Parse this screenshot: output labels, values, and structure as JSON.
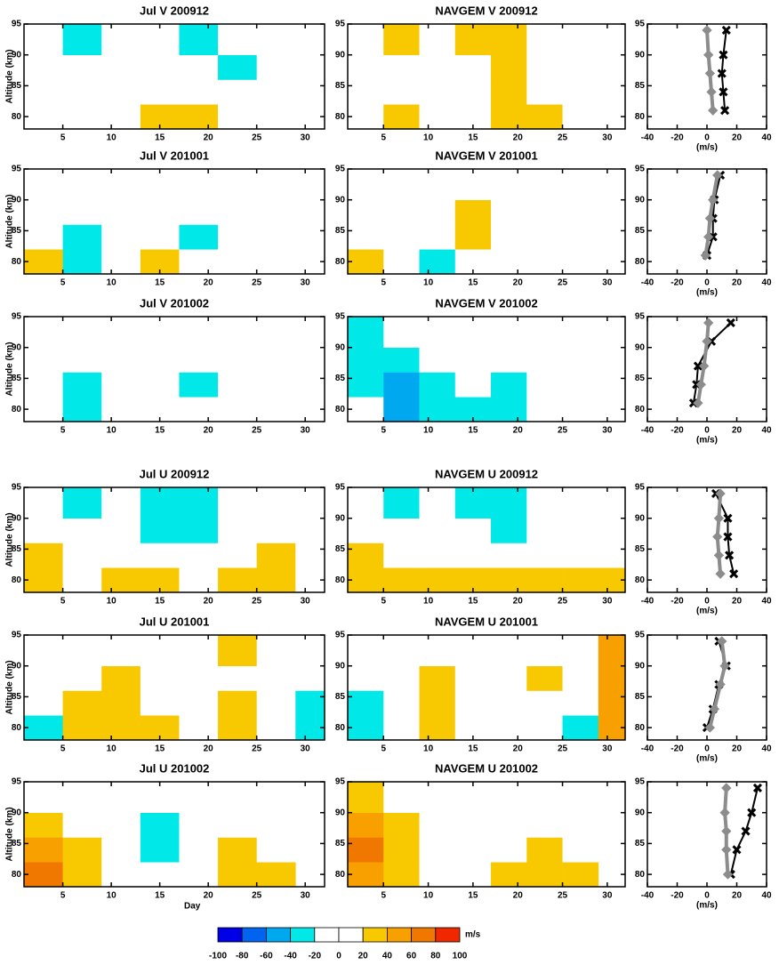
{
  "chart_data": [
    {
      "type": "heatmap",
      "title": "Jul V 200912",
      "ylabel": "Altitude (km)",
      "xbins": [
        1,
        5,
        9,
        13,
        17,
        21,
        25,
        29,
        32
      ],
      "ybins": [
        78,
        82,
        86,
        90,
        95
      ],
      "values": [
        [
          10,
          -10,
          15,
          25,
          30,
          10,
          -10,
          5
        ],
        [
          -10,
          -5,
          10,
          20,
          15,
          -15,
          -10,
          10
        ],
        [
          5,
          -15,
          -5,
          10,
          -10,
          -20,
          10,
          5
        ],
        [
          -10,
          -20,
          -10,
          5,
          -25,
          -15,
          5,
          -5
        ]
      ],
      "xlim": [
        1,
        32
      ],
      "xticks": [
        5,
        10,
        15,
        20,
        25,
        30
      ],
      "ylim": [
        78,
        95
      ],
      "yticks": [
        80,
        85,
        90,
        95
      ]
    },
    {
      "type": "heatmap",
      "title": "NAVGEM  V 200912",
      "xbins": [
        1,
        5,
        9,
        13,
        17,
        21,
        25,
        29,
        32
      ],
      "ybins": [
        78,
        82,
        86,
        90,
        95
      ],
      "values": [
        [
          15,
          25,
          -10,
          5,
          30,
          25,
          10,
          -5
        ],
        [
          10,
          20,
          -5,
          -10,
          25,
          20,
          5,
          -10
        ],
        [
          5,
          15,
          -15,
          10,
          25,
          15,
          -10,
          5
        ],
        [
          10,
          25,
          -10,
          30,
          25,
          10,
          5,
          -5
        ]
      ],
      "xlim": [
        1,
        32
      ],
      "xticks": [
        5,
        10,
        15,
        20,
        25,
        30
      ],
      "ylim": [
        78,
        95
      ],
      "yticks": [
        80,
        85,
        90,
        95
      ]
    },
    {
      "type": "profile",
      "xlabel": "(m/s)",
      "y": [
        81,
        84,
        87,
        90,
        94
      ],
      "series": [
        {
          "color": "#000000",
          "values": [
            12,
            11,
            10,
            11,
            13
          ]
        },
        {
          "color": "#8c8c8c",
          "values": [
            4,
            3,
            2,
            1,
            0
          ]
        }
      ],
      "xlim": [
        -40,
        40
      ],
      "xticks": [
        -40,
        -20,
        0,
        20,
        40
      ],
      "ylim": [
        78,
        95
      ],
      "yticks": [
        80,
        85,
        90,
        95
      ]
    },
    {
      "type": "heatmap",
      "title": "Jul V 201001",
      "ylabel": "Altitude (km)",
      "xbins": [
        1,
        5,
        9,
        13,
        17,
        21,
        25,
        29,
        32
      ],
      "ybins": [
        78,
        82,
        86,
        90,
        95
      ],
      "values": [
        [
          25,
          -20,
          -10,
          25,
          -15,
          -10,
          5,
          -10
        ],
        [
          10,
          -25,
          -5,
          15,
          -20,
          -5,
          10,
          -10
        ],
        [
          5,
          -15,
          10,
          20,
          -10,
          5,
          -5,
          -5
        ],
        [
          -10,
          5,
          15,
          10,
          5,
          10,
          -5,
          5
        ]
      ],
      "xlim": [
        1,
        32
      ],
      "xticks": [
        5,
        10,
        15,
        20,
        25,
        30
      ],
      "ylim": [
        78,
        95
      ],
      "yticks": [
        80,
        85,
        90,
        95
      ]
    },
    {
      "type": "heatmap",
      "title": "NAVGEM  V 201001",
      "xbins": [
        1,
        5,
        9,
        13,
        17,
        21,
        25,
        29,
        32
      ],
      "ybins": [
        78,
        82,
        86,
        90,
        95
      ],
      "values": [
        [
          25,
          -10,
          -20,
          5,
          -10,
          -15,
          -5,
          -10
        ],
        [
          15,
          -5,
          -10,
          25,
          -15,
          -10,
          5,
          -10
        ],
        [
          5,
          -10,
          -5,
          30,
          -5,
          5,
          10,
          -5
        ],
        [
          10,
          -5,
          5,
          15,
          -10,
          5,
          10,
          5
        ]
      ],
      "xlim": [
        1,
        32
      ],
      "xticks": [
        5,
        10,
        15,
        20,
        25,
        30
      ],
      "ylim": [
        78,
        95
      ],
      "yticks": [
        80,
        85,
        90,
        95
      ]
    },
    {
      "type": "profile",
      "xlabel": "(m/s)",
      "y": [
        81,
        84,
        87,
        90,
        94
      ],
      "series": [
        {
          "color": "#000000",
          "values": [
            0,
            4,
            4,
            5,
            9
          ]
        },
        {
          "color": "#8c8c8c",
          "values": [
            -1,
            1,
            2,
            4,
            7
          ]
        }
      ],
      "xlim": [
        -40,
        40
      ],
      "xticks": [
        -40,
        -20,
        0,
        20,
        40
      ],
      "ylim": [
        78,
        95
      ],
      "yticks": [
        80,
        85,
        90,
        95
      ]
    },
    {
      "type": "heatmap",
      "title": "Jul V 201002",
      "ylabel": "Altitude (km)",
      "xbins": [
        1,
        5,
        9,
        13,
        17,
        21,
        25,
        29
      ],
      "ybins": [
        78,
        82,
        86,
        90,
        95
      ],
      "values": [
        [
          -15,
          -20,
          -15,
          -10,
          -15,
          -10,
          -5
        ],
        [
          -10,
          -25,
          -10,
          5,
          -20,
          -5,
          5
        ],
        [
          -5,
          -10,
          5,
          -10,
          -5,
          10,
          5
        ],
        [
          -10,
          5,
          10,
          5,
          -10,
          5,
          10
        ]
      ],
      "xlim": [
        1,
        32
      ],
      "xticks": [
        5,
        10,
        15,
        20,
        25,
        30
      ],
      "ylim": [
        78,
        95
      ],
      "yticks": [
        80,
        85,
        90,
        95
      ]
    },
    {
      "type": "heatmap",
      "title": "NAVGEM  V 201002",
      "xbins": [
        1,
        5,
        9,
        13,
        17,
        21,
        25,
        29
      ],
      "ybins": [
        78,
        82,
        86,
        90,
        95
      ],
      "values": [
        [
          -10,
          -45,
          -30,
          -20,
          -25,
          -10,
          -5
        ],
        [
          -20,
          -45,
          -25,
          -15,
          -20,
          -5,
          5
        ],
        [
          -25,
          -30,
          -10,
          -10,
          -15,
          5,
          5
        ],
        [
          -30,
          -10,
          5,
          -5,
          -10,
          5,
          10
        ]
      ],
      "xlim": [
        1,
        32
      ],
      "xticks": [
        5,
        10,
        15,
        20,
        25,
        30
      ],
      "ylim": [
        78,
        95
      ],
      "yticks": [
        80,
        85,
        90,
        95
      ]
    },
    {
      "type": "profile",
      "xlabel": "(m/s)",
      "y": [
        81,
        84,
        87,
        91,
        94
      ],
      "series": [
        {
          "color": "#000000",
          "values": [
            -9,
            -7,
            -6,
            3,
            16
          ]
        },
        {
          "color": "#8c8c8c",
          "values": [
            -6,
            -4,
            -2,
            0,
            1
          ]
        }
      ],
      "xlim": [
        -40,
        40
      ],
      "xticks": [
        -40,
        -20,
        0,
        20,
        40
      ],
      "ylim": [
        78,
        95
      ],
      "yticks": [
        80,
        85,
        90,
        95
      ]
    },
    {
      "type": "heatmap",
      "title": "Jul U 200912",
      "ylabel": "Altitude (km)",
      "xbins": [
        1,
        5,
        9,
        13,
        17,
        21,
        25,
        29,
        32
      ],
      "ybins": [
        78,
        82,
        86,
        90,
        95
      ],
      "values": [
        [
          35,
          20,
          25,
          30,
          15,
          25,
          30,
          20
        ],
        [
          25,
          10,
          5,
          -10,
          -15,
          10,
          25,
          15
        ],
        [
          10,
          -10,
          -15,
          -20,
          -25,
          5,
          15,
          10
        ],
        [
          -10,
          -20,
          -15,
          -25,
          -30,
          -5,
          10,
          5
        ]
      ],
      "xlim": [
        1,
        32
      ],
      "xticks": [
        5,
        10,
        15,
        20,
        25,
        30
      ],
      "ylim": [
        78,
        95
      ],
      "yticks": [
        80,
        85,
        90,
        95
      ]
    },
    {
      "type": "heatmap",
      "title": "NAVGEM  U 200912",
      "xbins": [
        1,
        5,
        9,
        13,
        17,
        21,
        25,
        29,
        32
      ],
      "ybins": [
        78,
        82,
        86,
        90,
        95
      ],
      "values": [
        [
          40,
          25,
          25,
          30,
          25,
          30,
          30,
          25
        ],
        [
          25,
          15,
          10,
          5,
          -5,
          15,
          20,
          20
        ],
        [
          10,
          -5,
          -10,
          -10,
          -20,
          5,
          10,
          15
        ],
        [
          -5,
          -20,
          -15,
          -20,
          -25,
          -10,
          5,
          -5
        ]
      ],
      "xlim": [
        1,
        32
      ],
      "xticks": [
        5,
        10,
        15,
        20,
        25,
        30
      ],
      "ylim": [
        78,
        95
      ],
      "yticks": [
        80,
        85,
        90,
        95
      ]
    },
    {
      "type": "profile",
      "xlabel": "(m/s)",
      "y": [
        81,
        84,
        87,
        90,
        94
      ],
      "series": [
        {
          "color": "#000000",
          "values": [
            18,
            15,
            14,
            14,
            6
          ]
        },
        {
          "color": "#8c8c8c",
          "values": [
            9,
            8,
            7,
            8,
            9
          ]
        }
      ],
      "xlim": [
        -40,
        40
      ],
      "xticks": [
        -40,
        -20,
        0,
        20,
        40
      ],
      "ylim": [
        78,
        95
      ],
      "yticks": [
        80,
        85,
        90,
        95
      ]
    },
    {
      "type": "heatmap",
      "title": "Jul U 201001",
      "ylabel": "Altitude (km)",
      "xbins": [
        1,
        5,
        9,
        13,
        17,
        21,
        25,
        29,
        32
      ],
      "ybins": [
        78,
        82,
        86,
        90,
        95
      ],
      "values": [
        [
          -20,
          25,
          30,
          25,
          5,
          25,
          -15,
          -30
        ],
        [
          -15,
          25,
          30,
          20,
          10,
          25,
          -5,
          -20
        ],
        [
          -10,
          10,
          25,
          15,
          15,
          20,
          -5,
          -10
        ],
        [
          -5,
          -10,
          10,
          10,
          15,
          25,
          -10,
          20
        ]
      ],
      "xlim": [
        1,
        32
      ],
      "xticks": [
        5,
        10,
        15,
        20,
        25,
        30
      ],
      "ylim": [
        78,
        95
      ],
      "yticks": [
        80,
        85,
        90,
        95
      ]
    },
    {
      "type": "heatmap",
      "title": "NAVGEM  U 201001",
      "xbins": [
        1,
        5,
        9,
        13,
        17,
        21,
        25,
        29,
        32
      ],
      "ybins": [
        78,
        82,
        86,
        90,
        95
      ],
      "values": [
        [
          -30,
          20,
          25,
          -10,
          15,
          20,
          -20,
          45
        ],
        [
          -20,
          15,
          30,
          -5,
          20,
          20,
          -10,
          50
        ],
        [
          -15,
          10,
          35,
          5,
          15,
          25,
          -5,
          45
        ],
        [
          -10,
          5,
          15,
          10,
          20,
          20,
          -10,
          60
        ]
      ],
      "xlim": [
        1,
        32
      ],
      "xticks": [
        5,
        10,
        15,
        20,
        25,
        30
      ],
      "ylim": [
        78,
        95
      ],
      "yticks": [
        80,
        85,
        90,
        95
      ]
    },
    {
      "type": "profile",
      "xlabel": "(m/s)",
      "y": [
        80,
        83,
        87,
        90,
        94
      ],
      "series": [
        {
          "color": "#000000",
          "values": [
            0,
            4,
            8,
            13,
            8
          ]
        },
        {
          "color": "#8c8c8c",
          "values": [
            2,
            5,
            9,
            12,
            10
          ]
        }
      ],
      "xlim": [
        -40,
        40
      ],
      "xticks": [
        -40,
        -20,
        0,
        20,
        40
      ],
      "ylim": [
        78,
        95
      ],
      "yticks": [
        80,
        85,
        90,
        95
      ]
    },
    {
      "type": "heatmap",
      "title": "Jul U 201002",
      "ylabel": "Altitude (km)",
      "xlabel": "Day",
      "xbins": [
        1,
        5,
        9,
        13,
        17,
        21,
        25,
        29
      ],
      "ybins": [
        78,
        82,
        86,
        90,
        95
      ],
      "values": [
        [
          70,
          40,
          10,
          -10,
          20,
          30,
          25
        ],
        [
          55,
          30,
          -10,
          -20,
          15,
          25,
          20
        ],
        [
          30,
          15,
          -15,
          -20,
          5,
          15,
          15
        ],
        [
          20,
          -5,
          -10,
          -15,
          5,
          10,
          10
        ]
      ],
      "xlim": [
        1,
        32
      ],
      "xticks": [
        5,
        10,
        15,
        20,
        25,
        30
      ],
      "ylim": [
        78,
        95
      ],
      "yticks": [
        80,
        85,
        90,
        95
      ]
    },
    {
      "type": "heatmap",
      "title": "NAVGEM  U 201002",
      "xbins": [
        1,
        5,
        9,
        13,
        17,
        21,
        25,
        29
      ],
      "ybins": [
        78,
        82,
        86,
        90,
        95
      ],
      "values": [
        [
          50,
          30,
          20,
          15,
          25,
          30,
          25
        ],
        [
          65,
          35,
          15,
          10,
          20,
          25,
          20
        ],
        [
          50,
          30,
          15,
          5,
          15,
          20,
          15
        ],
        [
          30,
          20,
          10,
          -5,
          10,
          15,
          15
        ]
      ],
      "xlim": [
        1,
        32
      ],
      "xticks": [
        5,
        10,
        15,
        20,
        25,
        30
      ],
      "ylim": [
        78,
        95
      ],
      "yticks": [
        80,
        85,
        90,
        95
      ]
    },
    {
      "type": "profile",
      "xlabel": "(m/s)",
      "y": [
        80,
        84,
        87,
        90,
        94
      ],
      "series": [
        {
          "color": "#000000",
          "values": [
            16,
            20,
            26,
            30,
            34
          ]
        },
        {
          "color": "#8c8c8c",
          "values": [
            14,
            13,
            13,
            12,
            13
          ]
        }
      ],
      "xlim": [
        -40,
        40
      ],
      "xticks": [
        -40,
        -20,
        0,
        20,
        40
      ],
      "ylim": [
        78,
        95
      ],
      "yticks": [
        80,
        85,
        90,
        95
      ]
    },
    {
      "type": "colorbar",
      "label": "m/s",
      "bins": [
        -100,
        -80,
        -60,
        -40,
        -20,
        0,
        20,
        40,
        60,
        80,
        100
      ],
      "colors": [
        "#0000e6",
        "#0064f0",
        "#00a8f0",
        "#00e8e8",
        "#ffffff",
        "#ffffff",
        "#f8c800",
        "#f8a000",
        "#f07800",
        "#f02800"
      ]
    }
  ]
}
